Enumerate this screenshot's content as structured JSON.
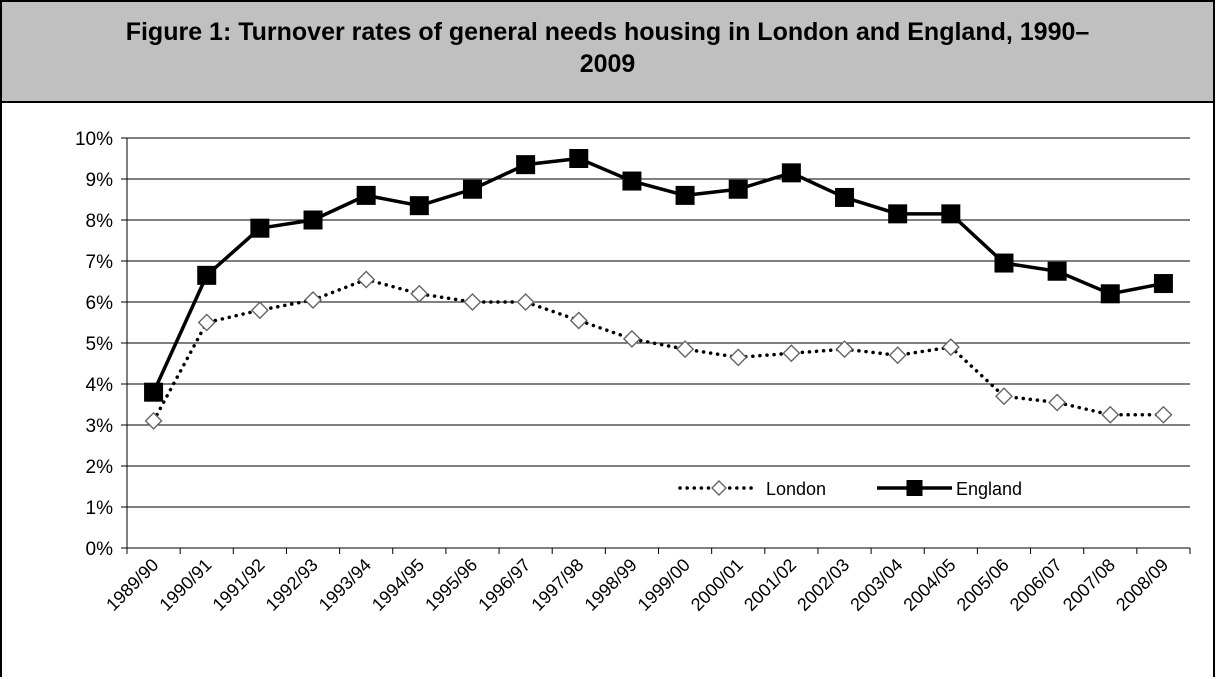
{
  "figure": {
    "title": "Figure 1: Turnover rates of general needs housing in London and England, 1990–2009"
  },
  "chart_data": {
    "type": "line",
    "title": "Figure 1: Turnover rates of general needs housing in London and England, 1990–2009",
    "xlabel": "",
    "ylabel": "",
    "categories": [
      "1989/90",
      "1990/91",
      "1991/92",
      "1992/93",
      "1993/94",
      "1994/95",
      "1995/96",
      "1996/97",
      "1997/98",
      "1998/99",
      "1999/00",
      "2000/01",
      "2001/02",
      "2002/03",
      "2003/04",
      "2004/05",
      "2005/06",
      "2006/07",
      "2007/08",
      "2008/09"
    ],
    "y_ticks": [
      "0%",
      "1%",
      "2%",
      "3%",
      "4%",
      "5%",
      "6%",
      "7%",
      "8%",
      "9%",
      "10%"
    ],
    "ylim": [
      0,
      10
    ],
    "y_unit": "%",
    "grid": true,
    "legend_position": "inside-lower-right",
    "series": [
      {
        "name": "London",
        "style": "dotted",
        "marker": "diamond-open",
        "color": "#000000",
        "values": [
          3.1,
          5.5,
          5.8,
          6.05,
          6.55,
          6.2,
          6.0,
          6.0,
          5.55,
          5.1,
          4.85,
          4.65,
          4.75,
          4.85,
          4.7,
          4.9,
          3.7,
          3.55,
          3.25,
          3.25
        ]
      },
      {
        "name": "England",
        "style": "solid",
        "marker": "square-filled",
        "color": "#000000",
        "values": [
          3.8,
          6.65,
          7.8,
          8.0,
          8.6,
          8.35,
          8.75,
          9.35,
          9.5,
          8.95,
          8.6,
          8.75,
          9.15,
          8.55,
          8.15,
          8.15,
          6.95,
          6.75,
          6.2,
          6.45
        ]
      }
    ]
  }
}
